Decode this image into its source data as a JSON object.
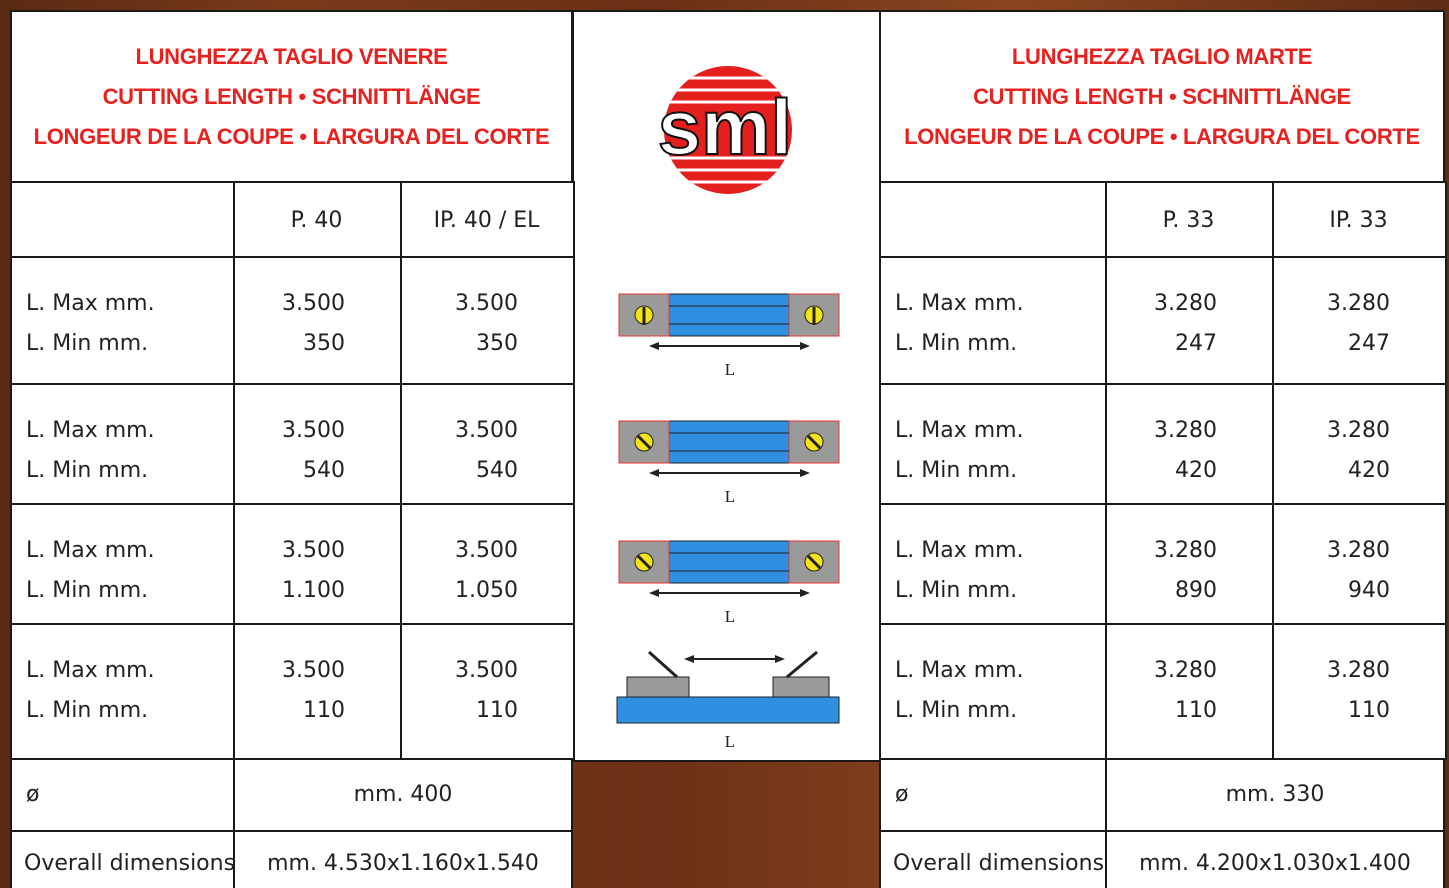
{
  "logo": "sml",
  "left": {
    "title": [
      "LUNGHEZZA TAGLIO VENERE",
      "CUTTING LENGTH • SCHNITTLÄNGE",
      "LONGEUR DE LA COUPE • LARGURA DEL CORTE"
    ],
    "columns": [
      "P. 40",
      "IP. 40 / EL"
    ],
    "rows": [
      {
        "labels": [
          "L. Max mm.",
          "L. Min mm."
        ],
        "values": [
          [
            "3.500",
            "350"
          ],
          [
            "3.500",
            "350"
          ]
        ]
      },
      {
        "labels": [
          "L. Max mm.",
          "L. Min mm."
        ],
        "values": [
          [
            "3.500",
            "540"
          ],
          [
            "3.500",
            "540"
          ]
        ]
      },
      {
        "labels": [
          "L. Max mm.",
          "L. Min mm."
        ],
        "values": [
          [
            "3.500",
            "1.100"
          ],
          [
            "3.500",
            "1.050"
          ]
        ]
      },
      {
        "labels": [
          "L. Max mm.",
          "L. Min mm."
        ],
        "values": [
          [
            "3.500",
            "110"
          ],
          [
            "3.500",
            "110"
          ]
        ]
      }
    ],
    "diameter": {
      "label": "ø",
      "value": "mm. 400"
    },
    "overall": {
      "label": "Overall dimensions",
      "value": "mm. 4.530x1.160x1.540"
    }
  },
  "right": {
    "title": [
      "LUNGHEZZA TAGLIO MARTE",
      "CUTTING LENGTH • SCHNITTLÄNGE",
      "LONGEUR DE LA COUPE • LARGURA DEL CORTE"
    ],
    "columns": [
      "P. 33",
      "IP. 33"
    ],
    "rows": [
      {
        "labels": [
          "L. Max mm.",
          "L. Min mm."
        ],
        "values": [
          [
            "3.280",
            "247"
          ],
          [
            "3.280",
            "247"
          ]
        ]
      },
      {
        "labels": [
          "L. Max mm.",
          "L. Min mm."
        ],
        "values": [
          [
            "3.280",
            "420"
          ],
          [
            "3.280",
            "420"
          ]
        ]
      },
      {
        "labels": [
          "L. Max mm.",
          "L. Min mm."
        ],
        "values": [
          [
            "3.280",
            "890"
          ],
          [
            "3.280",
            "940"
          ]
        ]
      },
      {
        "labels": [
          "L. Max mm.",
          "L. Min mm."
        ],
        "values": [
          [
            "3.280",
            "110"
          ],
          [
            "3.280",
            "110"
          ]
        ]
      }
    ],
    "diameter": {
      "label": "ø",
      "value": "mm. 330"
    },
    "overall": {
      "label": "Overall dimensions",
      "value": "mm. 4.200x1.030x1.400"
    }
  },
  "diagrams": [
    "L",
    "L",
    "L",
    "L"
  ]
}
